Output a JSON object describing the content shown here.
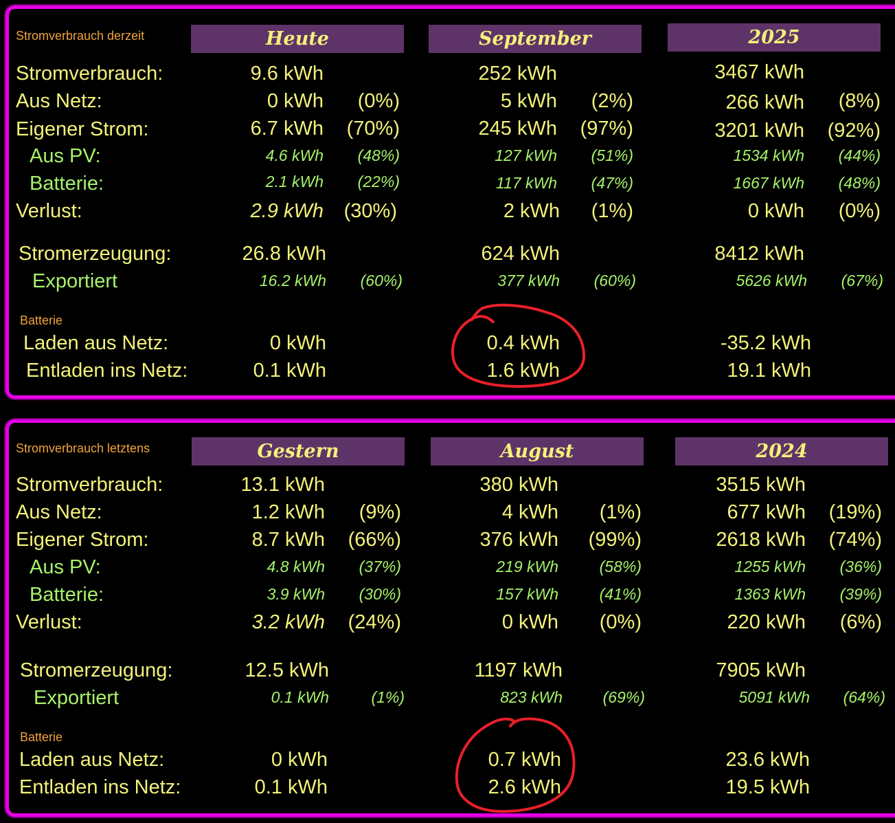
{
  "panels": [
    {
      "caption": "Stromverbrauch derzeit",
      "columns": [
        "Heute",
        "September",
        "2025"
      ],
      "labels": {
        "stromverbrauch": "Stromverbrauch:",
        "aus_netz": "Aus Netz:",
        "eigener_strom": "Eigener Strom:",
        "aus_pv": "Aus PV:",
        "batterie": "Batterie:",
        "verlust": "Verlust:",
        "stromerzeugung": "Stromerzeugung:",
        "exportiert": "Exportiert",
        "batterie_section": "Batterie",
        "laden": "Laden aus Netz:",
        "entladen": "Entladen ins Netz:"
      },
      "rows": {
        "stromverbrauch": [
          [
            "9.6 kWh",
            ""
          ],
          [
            "252 kWh",
            ""
          ],
          [
            "3467 kWh",
            ""
          ]
        ],
        "aus_netz": [
          [
            "0 kWh",
            "(0%)"
          ],
          [
            "5 kWh",
            "(2%)"
          ],
          [
            "266 kWh",
            "(8%)"
          ]
        ],
        "eigener_strom": [
          [
            "6.7 kWh",
            "(70%)"
          ],
          [
            "245 kWh",
            "(97%)"
          ],
          [
            "3201 kWh",
            "(92%)"
          ]
        ],
        "aus_pv": [
          [
            "4.6 kWh",
            "(48%)"
          ],
          [
            "127 kWh",
            "(51%)"
          ],
          [
            "1534 kWh",
            "(44%)"
          ]
        ],
        "batterie": [
          [
            "2.1 kWh",
            "(22%)"
          ],
          [
            "117 kWh",
            "(47%)"
          ],
          [
            "1667 kWh",
            "(48%)"
          ]
        ],
        "verlust": [
          [
            "2.9 kWh",
            "(30%)"
          ],
          [
            "2 kWh",
            "(1%)"
          ],
          [
            "0 kWh",
            "(0%)"
          ]
        ],
        "stromerzeugung": [
          [
            "26.8 kWh",
            ""
          ],
          [
            "624 kWh",
            ""
          ],
          [
            "8412 kWh",
            ""
          ]
        ],
        "exportiert": [
          [
            "16.2 kWh",
            "(60%)"
          ],
          [
            "377 kWh",
            "(60%)"
          ],
          [
            "5626 kWh",
            "(67%)"
          ]
        ],
        "laden": [
          [
            "0 kWh",
            ""
          ],
          [
            "0.4 kWh",
            ""
          ],
          [
            "-35.2 kWh",
            ""
          ]
        ],
        "entladen": [
          [
            "0.1 kWh",
            ""
          ],
          [
            "1.6 kWh",
            ""
          ],
          [
            "19.1 kWh",
            ""
          ]
        ]
      }
    },
    {
      "caption": "Stromverbrauch letztens",
      "columns": [
        "Gestern",
        "August",
        "2024"
      ],
      "labels": {
        "stromverbrauch": "Stromverbrauch:",
        "aus_netz": "Aus Netz:",
        "eigener_strom": "Eigener Strom:",
        "aus_pv": "Aus PV:",
        "batterie": "Batterie:",
        "verlust": "Verlust:",
        "stromerzeugung": "Stromerzeugung:",
        "exportiert": "Exportiert",
        "batterie_section": "Batterie",
        "laden": "Laden aus Netz:",
        "entladen": "Entladen ins Netz:"
      },
      "rows": {
        "stromverbrauch": [
          [
            "13.1 kWh",
            ""
          ],
          [
            "380 kWh",
            ""
          ],
          [
            "3515 kWh",
            ""
          ]
        ],
        "aus_netz": [
          [
            "1.2 kWh",
            "(9%)"
          ],
          [
            "4 kWh",
            "(1%)"
          ],
          [
            "677 kWh",
            "(19%)"
          ]
        ],
        "eigener_strom": [
          [
            "8.7 kWh",
            "(66%)"
          ],
          [
            "376 kWh",
            "(99%)"
          ],
          [
            "2618 kWh",
            "(74%)"
          ]
        ],
        "aus_pv": [
          [
            "4.8 kWh",
            "(37%)"
          ],
          [
            "219 kWh",
            "(58%)"
          ],
          [
            "1255 kWh",
            "(36%)"
          ]
        ],
        "batterie": [
          [
            "3.9 kWh",
            "(30%)"
          ],
          [
            "157 kWh",
            "(41%)"
          ],
          [
            "1363 kWh",
            "(39%)"
          ]
        ],
        "verlust": [
          [
            "3.2 kWh",
            "(24%)"
          ],
          [
            "0 kWh",
            "(0%)"
          ],
          [
            "220 kWh",
            "(6%)"
          ]
        ],
        "stromerzeugung": [
          [
            "12.5 kWh",
            ""
          ],
          [
            "1197 kWh",
            ""
          ],
          [
            "7905 kWh",
            ""
          ]
        ],
        "exportiert": [
          [
            "0.1 kWh",
            "(1%)"
          ],
          [
            "823 kWh",
            "(69%)"
          ],
          [
            "5091 kWh",
            "(64%)"
          ]
        ],
        "laden": [
          [
            "0 kWh",
            ""
          ],
          [
            "0.7 kWh",
            ""
          ],
          [
            "23.6 kWh",
            ""
          ]
        ],
        "entladen": [
          [
            "0.1 kWh",
            ""
          ],
          [
            "2.6 kWh",
            ""
          ],
          [
            "19.5 kWh",
            ""
          ]
        ]
      }
    }
  ],
  "colors": {
    "frame": "#e600e6",
    "header_bg": "#5e3468",
    "text_yellow": "#f2f27a",
    "text_green": "#a6f26a",
    "caption_orange": "#f0a23c",
    "annotation_red": "#e8202a"
  }
}
